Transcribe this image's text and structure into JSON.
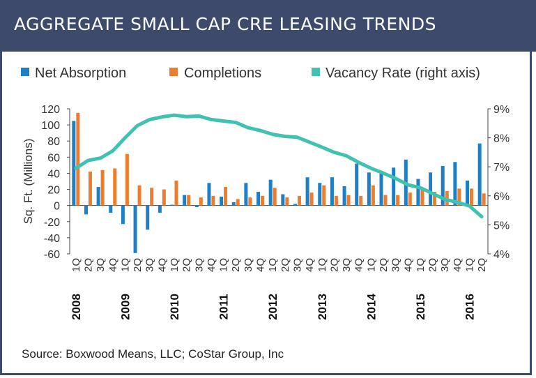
{
  "title": "AGGREGATE SMALL CAP CRE LEASING TRENDS",
  "source": "Source: Boxwood Means, LLC; CoStar Group, Inc",
  "chart_data": {
    "type": "bar",
    "ylabel": "Sq. Ft. (Millions)",
    "ylim": [
      -60,
      120
    ],
    "y_ticks": [
      "120",
      "100",
      "80",
      "60",
      "40",
      "20",
      "0",
      "-20",
      "-40",
      "-60"
    ],
    "y2lim": [
      4,
      9
    ],
    "y2_ticks": [
      "9%",
      "8%",
      "7%",
      "6%",
      "5%",
      "4%"
    ],
    "legend": [
      {
        "name": "Net Absorption",
        "color": "#1f7fc4"
      },
      {
        "name": "Completions",
        "color": "#ec7d2e"
      },
      {
        "name": "Vacancy Rate (right axis)",
        "color": "#41c1b0"
      }
    ],
    "categories": [
      "1Q",
      "2Q",
      "3Q",
      "4Q",
      "1Q",
      "2Q",
      "3Q",
      "4Q",
      "1Q",
      "2Q",
      "3Q",
      "4Q",
      "1Q",
      "2Q",
      "3Q",
      "4Q",
      "1Q",
      "2Q",
      "3Q",
      "4Q",
      "1Q",
      "2Q",
      "3Q",
      "4Q",
      "1Q",
      "2Q",
      "3Q",
      "4Q",
      "1Q",
      "2Q",
      "3Q",
      "4Q",
      "1Q",
      "2Q"
    ],
    "years": [
      "2008",
      "2009",
      "2010",
      "2011",
      "2012",
      "2013",
      "2014",
      "2015",
      "2016"
    ],
    "series": [
      {
        "name": "Net Absorption",
        "values": [
          105,
          -11,
          23,
          -9,
          -23,
          -59,
          -30,
          -9,
          1,
          13,
          -2,
          28,
          11,
          4,
          28,
          17,
          32,
          14,
          2,
          35,
          28,
          35,
          24,
          52,
          41,
          43,
          47,
          57,
          33,
          41,
          49,
          54,
          31,
          77
        ]
      },
      {
        "name": "Completions",
        "values": [
          115,
          42,
          44,
          46,
          64,
          25,
          22,
          20,
          31,
          13,
          10,
          12,
          23,
          8,
          10,
          12,
          22,
          10,
          12,
          16,
          25,
          12,
          13,
          12,
          25,
          13,
          13,
          16,
          20,
          17,
          18,
          21,
          21,
          15
        ]
      },
      {
        "name": "Vacancy Rate (right axis)",
        "values": [
          6.95,
          7.22,
          7.3,
          7.55,
          8.0,
          8.42,
          8.63,
          8.72,
          8.78,
          8.73,
          8.75,
          8.63,
          8.58,
          8.53,
          8.35,
          8.25,
          8.12,
          8.05,
          8.02,
          7.85,
          7.68,
          7.5,
          7.38,
          7.15,
          6.95,
          6.78,
          6.6,
          6.38,
          6.28,
          6.08,
          5.88,
          5.78,
          5.65,
          5.28
        ]
      }
    ]
  }
}
